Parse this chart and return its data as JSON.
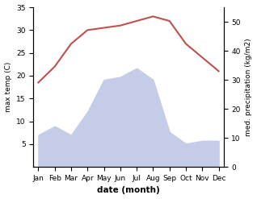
{
  "months": [
    "Jan",
    "Feb",
    "Mar",
    "Apr",
    "May",
    "Jun",
    "Jul",
    "Aug",
    "Sep",
    "Oct",
    "Nov",
    "Dec"
  ],
  "temperature": [
    18.5,
    22,
    27,
    30,
    30.5,
    31,
    32,
    33,
    32,
    27,
    24,
    21
  ],
  "precipitation": [
    11,
    14,
    11,
    19,
    30,
    31,
    34,
    30,
    12,
    8,
    9,
    9
  ],
  "temp_color": "#c0504d",
  "precip_fill_color": "#c5cce8",
  "temp_ylim": [
    0,
    35
  ],
  "precip_ylim": [
    0,
    55
  ],
  "temp_yticks": [
    5,
    10,
    15,
    20,
    25,
    30,
    35
  ],
  "precip_yticks": [
    0,
    10,
    20,
    30,
    40,
    50
  ],
  "xlabel": "date (month)",
  "ylabel_left": "max temp (C)",
  "ylabel_right": "med. precipitation (kg/m2)",
  "fig_width": 3.18,
  "fig_height": 2.47,
  "dpi": 100
}
